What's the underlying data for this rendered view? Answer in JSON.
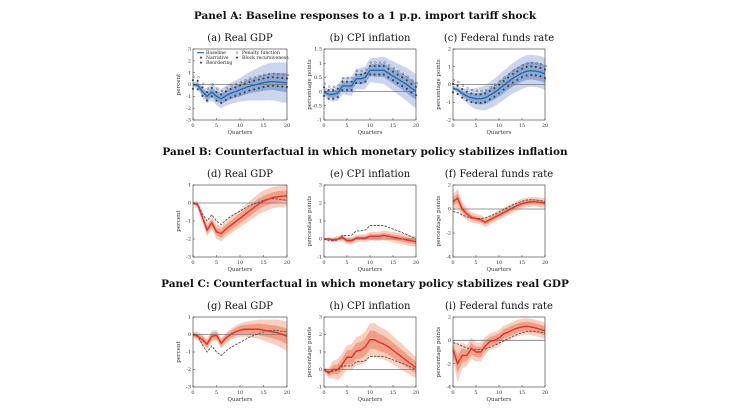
{
  "panels": [
    {
      "title": "Panel A: Baseline responses to a 1 p.p. import tariff shock"
    },
    {
      "title": "Panel B: Counterfactual in which monetary policy stabilizes inflation"
    },
    {
      "title": "Panel C: Counterfactual in which monetary policy stabilizes real GDP"
    }
  ],
  "legend": [
    "Baseline",
    "Narrative",
    "Reordering",
    "Penalty function",
    "Block recursiveness"
  ],
  "colors": {
    "blue_line": "#1f6db3",
    "blue_inner": "#8ea8d6",
    "blue_outer": "#cbd6ee",
    "red_line": "#e3302a",
    "red_inner": "#f1a088",
    "red_outer": "#f9d0c0",
    "dashed": "#555555"
  },
  "chart_data": [
    {
      "id": "a",
      "type": "line",
      "title": "(a) Real GDP",
      "xlabel": "Quarters",
      "ylabel": "percent",
      "ylim": [
        -3,
        3
      ],
      "yticks": [
        -3,
        -2,
        -1,
        0,
        1,
        2,
        3
      ],
      "xticks": [
        0,
        5,
        10,
        15,
        20
      ],
      "style": "blue",
      "legend": true,
      "values": [
        0,
        -0.05,
        -0.6,
        -1.0,
        -0.65,
        -1.0,
        -1.2,
        -0.95,
        -0.75,
        -0.6,
        -0.45,
        -0.3,
        -0.15,
        -0.05,
        0.05,
        0.15,
        0.22,
        0.25,
        0.22,
        0.18,
        0.15
      ],
      "inner_halfwidth": [
        0.1,
        0.2,
        0.3,
        0.35,
        0.4,
        0.42,
        0.45,
        0.48,
        0.5,
        0.52,
        0.55,
        0.58,
        0.6,
        0.62,
        0.65,
        0.68,
        0.7,
        0.72,
        0.75,
        0.78,
        0.8
      ],
      "outer_halfwidth": [
        0.2,
        0.35,
        0.5,
        0.6,
        0.7,
        0.75,
        0.8,
        0.85,
        0.9,
        0.95,
        1.0,
        1.1,
        1.2,
        1.3,
        1.4,
        1.5,
        1.55,
        1.6,
        1.65,
        1.7,
        1.7
      ]
    },
    {
      "id": "b",
      "type": "line",
      "title": "(b) CPI inflation",
      "xlabel": "Quarters",
      "ylabel": "percentage points",
      "ylim": [
        -1,
        1.5
      ],
      "yticks": [
        -1,
        -0.5,
        0,
        0.5,
        1,
        1.5
      ],
      "xticks": [
        0,
        5,
        10,
        15,
        20
      ],
      "style": "blue",
      "values": [
        0,
        -0.1,
        -0.1,
        -0.05,
        0.2,
        0.2,
        0.2,
        0.45,
        0.45,
        0.5,
        0.75,
        0.75,
        0.75,
        0.75,
        0.65,
        0.55,
        0.45,
        0.35,
        0.25,
        0.12,
        0.02
      ],
      "inner_halfwidth": [
        0.08,
        0.1,
        0.12,
        0.14,
        0.15,
        0.16,
        0.17,
        0.18,
        0.19,
        0.2,
        0.21,
        0.22,
        0.23,
        0.24,
        0.25,
        0.26,
        0.27,
        0.28,
        0.29,
        0.3,
        0.3
      ],
      "outer_halfwidth": [
        0.15,
        0.2,
        0.25,
        0.28,
        0.3,
        0.32,
        0.34,
        0.36,
        0.38,
        0.4,
        0.42,
        0.44,
        0.46,
        0.48,
        0.5,
        0.52,
        0.54,
        0.56,
        0.58,
        0.6,
        0.6
      ]
    },
    {
      "id": "c",
      "type": "line",
      "title": "(c) Federal funds rate",
      "xlabel": "Quarters",
      "ylabel": "percentage points",
      "ylim": [
        -2,
        2
      ],
      "yticks": [
        -2,
        -1,
        0,
        1,
        2
      ],
      "xticks": [
        0,
        5,
        10,
        15,
        20
      ],
      "style": "blue",
      "values": [
        -0.2,
        -0.3,
        -0.5,
        -0.65,
        -0.75,
        -0.8,
        -0.8,
        -0.75,
        -0.6,
        -0.45,
        -0.25,
        -0.05,
        0.15,
        0.35,
        0.5,
        0.65,
        0.75,
        0.78,
        0.75,
        0.7,
        0.6
      ],
      "inner_halfwidth": [
        0.05,
        0.1,
        0.15,
        0.2,
        0.25,
        0.3,
        0.33,
        0.36,
        0.38,
        0.4,
        0.42,
        0.44,
        0.45,
        0.46,
        0.47,
        0.48,
        0.49,
        0.5,
        0.5,
        0.5,
        0.5
      ],
      "outer_halfwidth": [
        0.1,
        0.2,
        0.3,
        0.4,
        0.5,
        0.6,
        0.65,
        0.7,
        0.75,
        0.78,
        0.8,
        0.82,
        0.84,
        0.86,
        0.88,
        0.9,
        0.9,
        0.9,
        0.9,
        0.9,
        0.9
      ]
    },
    {
      "id": "d",
      "type": "line",
      "title": "(d) Real GDP",
      "xlabel": "Quarters",
      "ylabel": "percent",
      "ylim": [
        -3,
        1
      ],
      "yticks": [
        -3,
        -2,
        -1,
        0,
        1
      ],
      "xticks": [
        0,
        5,
        10,
        15,
        20
      ],
      "style": "red",
      "values": [
        0,
        -0.1,
        -0.8,
        -1.5,
        -1.1,
        -1.6,
        -1.7,
        -1.45,
        -1.25,
        -1.05,
        -0.85,
        -0.65,
        -0.45,
        -0.25,
        -0.05,
        0.1,
        0.2,
        0.3,
        0.35,
        0.38,
        0.4
      ],
      "baseline": [
        0,
        -0.05,
        -0.6,
        -1.0,
        -0.65,
        -1.0,
        -1.2,
        -0.95,
        -0.75,
        -0.6,
        -0.45,
        -0.3,
        -0.15,
        -0.05,
        0.05,
        0.15,
        0.22,
        0.25,
        0.22,
        0.18,
        0.15
      ],
      "inner_halfwidth": [
        0.05,
        0.1,
        0.15,
        0.2,
        0.2,
        0.22,
        0.24,
        0.25,
        0.26,
        0.27,
        0.28,
        0.29,
        0.3,
        0.3,
        0.3,
        0.3,
        0.3,
        0.3,
        0.3,
        0.3,
        0.3
      ],
      "outer_halfwidth": [
        0.1,
        0.2,
        0.3,
        0.35,
        0.38,
        0.4,
        0.42,
        0.44,
        0.46,
        0.48,
        0.5,
        0.52,
        0.54,
        0.56,
        0.58,
        0.6,
        0.6,
        0.6,
        0.6,
        0.6,
        0.6
      ]
    },
    {
      "id": "e",
      "type": "line",
      "title": "(e) CPI inflation",
      "xlabel": "Quarters",
      "ylabel": "percentage points",
      "ylim": [
        -1,
        3
      ],
      "yticks": [
        -1,
        0,
        1,
        2,
        3
      ],
      "xticks": [
        0,
        5,
        10,
        15,
        20
      ],
      "style": "red",
      "values": [
        0,
        0,
        -0.05,
        0,
        0.1,
        -0.1,
        -0.1,
        0.05,
        0.05,
        0.05,
        0.15,
        0.15,
        0.15,
        0.2,
        0.15,
        0.1,
        0.05,
        0,
        -0.05,
        -0.1,
        -0.15
      ],
      "baseline": [
        0,
        -0.1,
        -0.1,
        -0.05,
        0.2,
        0.2,
        0.2,
        0.45,
        0.45,
        0.5,
        0.75,
        0.75,
        0.75,
        0.75,
        0.65,
        0.55,
        0.45,
        0.35,
        0.25,
        0.12,
        0.02
      ],
      "inner_halfwidth": [
        0.03,
        0.05,
        0.07,
        0.08,
        0.1,
        0.1,
        0.1,
        0.1,
        0.1,
        0.11,
        0.12,
        0.12,
        0.13,
        0.13,
        0.14,
        0.14,
        0.15,
        0.15,
        0.15,
        0.15,
        0.15
      ],
      "outer_halfwidth": [
        0.06,
        0.1,
        0.13,
        0.16,
        0.2,
        0.2,
        0.2,
        0.2,
        0.2,
        0.22,
        0.24,
        0.25,
        0.26,
        0.27,
        0.28,
        0.29,
        0.3,
        0.3,
        0.3,
        0.3,
        0.3
      ]
    },
    {
      "id": "f",
      "type": "line",
      "title": "(f) Federal funds rate",
      "xlabel": "Quarters",
      "ylabel": "percentage points",
      "ylim": [
        -4,
        2
      ],
      "yticks": [
        -4,
        -2,
        0,
        2
      ],
      "xticks": [
        0,
        5,
        10,
        15,
        20
      ],
      "style": "red",
      "values": [
        0.6,
        0.9,
        0,
        -0.4,
        -0.7,
        -0.8,
        -0.9,
        -1.1,
        -0.9,
        -0.7,
        -0.5,
        -0.3,
        -0.1,
        0.1,
        0.3,
        0.45,
        0.55,
        0.6,
        0.6,
        0.55,
        0.5
      ],
      "baseline": [
        -0.2,
        -0.3,
        -0.5,
        -0.65,
        -0.75,
        -0.8,
        -0.8,
        -0.75,
        -0.6,
        -0.45,
        -0.25,
        -0.05,
        0.15,
        0.35,
        0.5,
        0.65,
        0.75,
        0.78,
        0.75,
        0.7,
        0.6
      ],
      "inner_halfwidth": [
        0.3,
        0.4,
        0.3,
        0.25,
        0.2,
        0.2,
        0.2,
        0.2,
        0.2,
        0.2,
        0.2,
        0.2,
        0.2,
        0.2,
        0.2,
        0.2,
        0.2,
        0.2,
        0.2,
        0.2,
        0.2
      ],
      "outer_halfwidth": [
        0.6,
        0.8,
        0.6,
        0.5,
        0.45,
        0.4,
        0.4,
        0.4,
        0.4,
        0.4,
        0.4,
        0.4,
        0.4,
        0.4,
        0.4,
        0.4,
        0.4,
        0.4,
        0.4,
        0.4,
        0.4
      ]
    },
    {
      "id": "g",
      "type": "line",
      "title": "(g) Real GDP",
      "xlabel": "Quarters",
      "ylabel": "percent",
      "ylim": [
        -3,
        1
      ],
      "yticks": [
        -3,
        -2,
        -1,
        0,
        1
      ],
      "xticks": [
        0,
        5,
        10,
        15,
        20
      ],
      "style": "red",
      "values": [
        0,
        -0.1,
        -0.3,
        -0.55,
        -0.1,
        -0.05,
        -0.5,
        -0.2,
        0,
        0.15,
        0.25,
        0.3,
        0.3,
        0.3,
        0.3,
        0.25,
        0.2,
        0.15,
        0.1,
        0,
        -0.1
      ],
      "baseline": [
        0,
        -0.05,
        -0.6,
        -1.0,
        -0.65,
        -1.0,
        -1.2,
        -0.95,
        -0.75,
        -0.6,
        -0.45,
        -0.3,
        -0.15,
        -0.05,
        0.05,
        0.15,
        0.22,
        0.25,
        0.22,
        0.18,
        0.15
      ],
      "inner_halfwidth": [
        0.1,
        0.15,
        0.2,
        0.2,
        0.2,
        0.2,
        0.2,
        0.2,
        0.2,
        0.22,
        0.24,
        0.26,
        0.28,
        0.3,
        0.32,
        0.34,
        0.36,
        0.38,
        0.4,
        0.42,
        0.45
      ],
      "outer_halfwidth": [
        0.2,
        0.25,
        0.3,
        0.3,
        0.3,
        0.3,
        0.3,
        0.3,
        0.32,
        0.35,
        0.38,
        0.42,
        0.46,
        0.5,
        0.55,
        0.6,
        0.65,
        0.7,
        0.75,
        0.8,
        0.85
      ]
    },
    {
      "id": "h",
      "type": "line",
      "title": "(h) CPI inflation",
      "xlabel": "Quarters",
      "ylabel": "percentage points",
      "ylim": [
        -1,
        3
      ],
      "yticks": [
        -1,
        0,
        1,
        2,
        3
      ],
      "xticks": [
        0,
        5,
        10,
        15,
        20
      ],
      "style": "red",
      "values": [
        0,
        -0.2,
        0,
        0,
        0.3,
        0.7,
        0.7,
        1.05,
        1.1,
        1.3,
        1.7,
        1.7,
        1.55,
        1.45,
        1.3,
        1.1,
        0.9,
        0.7,
        0.5,
        0.3,
        0.1
      ],
      "baseline": [
        0,
        -0.1,
        -0.1,
        -0.05,
        0.2,
        0.2,
        0.2,
        0.45,
        0.45,
        0.5,
        0.75,
        0.75,
        0.75,
        0.75,
        0.65,
        0.55,
        0.45,
        0.35,
        0.25,
        0.12,
        0.02
      ],
      "inner_halfwidth": [
        0.05,
        0.15,
        0.25,
        0.3,
        0.35,
        0.4,
        0.42,
        0.45,
        0.48,
        0.5,
        0.52,
        0.52,
        0.5,
        0.48,
        0.46,
        0.44,
        0.42,
        0.4,
        0.38,
        0.36,
        0.35
      ],
      "outer_halfwidth": [
        0.1,
        0.3,
        0.5,
        0.6,
        0.65,
        0.7,
        0.75,
        0.8,
        0.85,
        0.9,
        0.95,
        0.95,
        0.9,
        0.88,
        0.85,
        0.82,
        0.78,
        0.74,
        0.7,
        0.66,
        0.6
      ]
    },
    {
      "id": "i",
      "type": "line",
      "title": "(i) Federal funds rate",
      "xlabel": "Quarters",
      "ylabel": "percentage points",
      "ylim": [
        -4,
        2
      ],
      "yticks": [
        -4,
        -2,
        0,
        2
      ],
      "xticks": [
        0,
        5,
        10,
        15,
        20
      ],
      "style": "red",
      "values": [
        -0.8,
        -2.0,
        -1.3,
        -1.3,
        -0.7,
        -1.0,
        -1.0,
        -0.5,
        -0.1,
        0,
        0.2,
        0.55,
        0.7,
        0.9,
        1.05,
        1.15,
        1.2,
        1.15,
        1.05,
        0.95,
        0.8
      ],
      "baseline": [
        -0.2,
        -0.3,
        -0.5,
        -0.65,
        -0.75,
        -0.8,
        -0.8,
        -0.75,
        -0.6,
        -0.45,
        -0.25,
        -0.05,
        0.15,
        0.35,
        0.5,
        0.65,
        0.75,
        0.78,
        0.75,
        0.7,
        0.6
      ],
      "inner_halfwidth": [
        0.4,
        0.8,
        0.6,
        0.5,
        0.5,
        0.45,
        0.45,
        0.45,
        0.4,
        0.4,
        0.4,
        0.4,
        0.4,
        0.4,
        0.4,
        0.4,
        0.4,
        0.4,
        0.4,
        0.4,
        0.4
      ],
      "outer_halfwidth": [
        0.8,
        1.6,
        1.1,
        0.9,
        0.9,
        0.8,
        0.8,
        0.75,
        0.7,
        0.7,
        0.7,
        0.7,
        0.7,
        0.7,
        0.7,
        0.7,
        0.7,
        0.7,
        0.7,
        0.7,
        0.7
      ]
    }
  ]
}
